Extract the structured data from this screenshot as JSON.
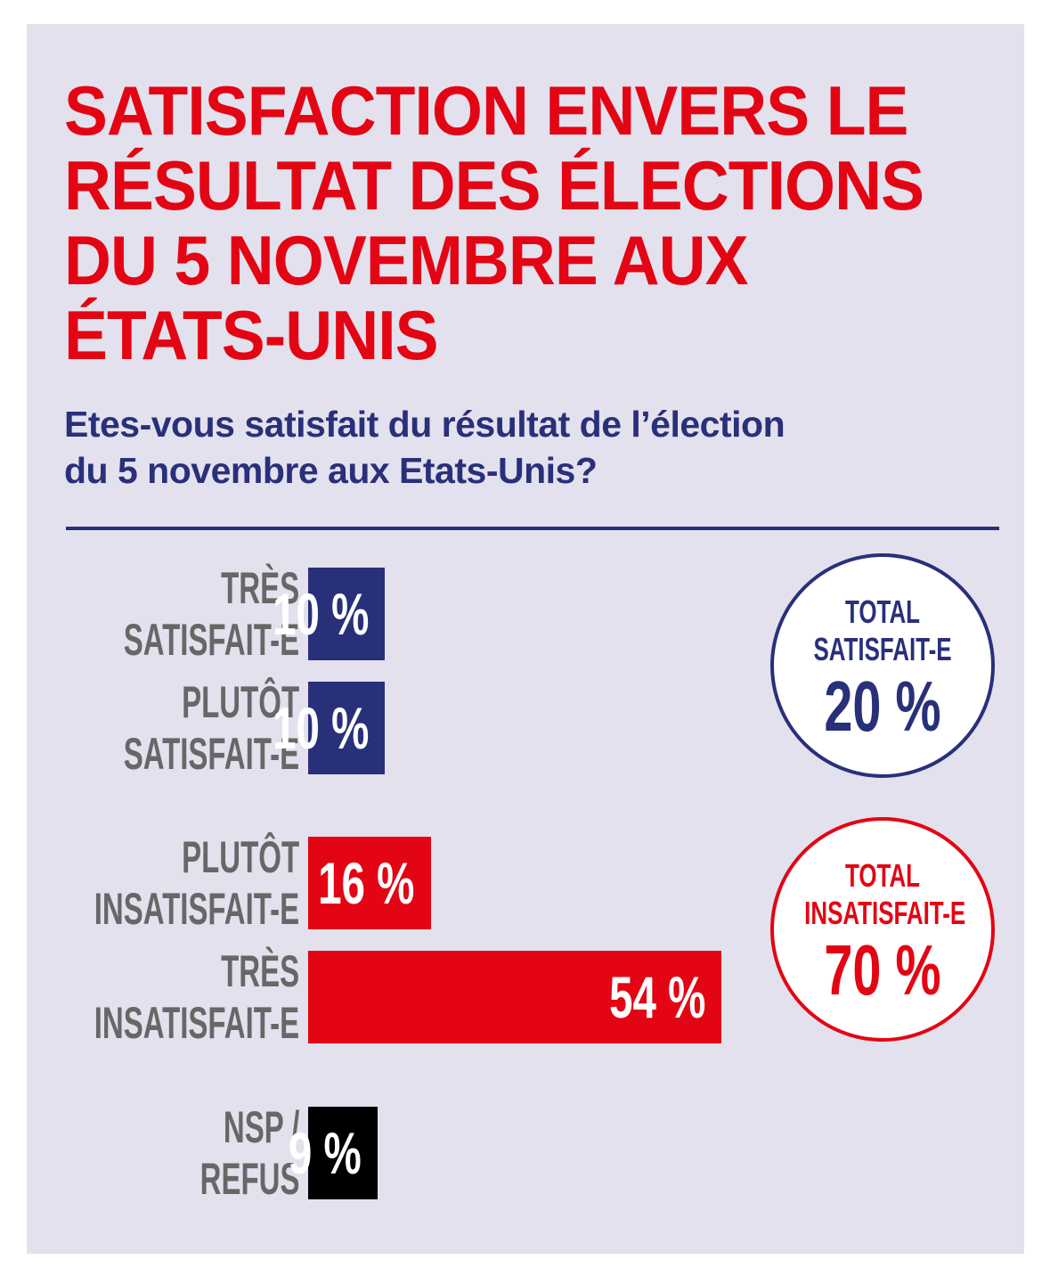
{
  "title_lines": [
    "SATISFACTION ENVERS LE",
    "RÉSULTAT DES ÉLECTIONS",
    "DU 5 NOVEMBRE AUX",
    "ÉTATS-UNIS"
  ],
  "question_lines": [
    "Etes-vous satisfait du résultat de l’élection",
    "du 5 novembre aux Etats-Unis?"
  ],
  "colors": {
    "title": "#e30513",
    "question": "#29307a",
    "satisfied": "#29307a",
    "dissatisfied": "#e30513",
    "no_answer": "#000000",
    "category_text": "#676767",
    "background": "#e4e1ee"
  },
  "chart_data": {
    "type": "bar",
    "orientation": "horizontal",
    "unit": "%",
    "bars": [
      {
        "category_lines": [
          "TRÈS",
          "SATISFAIT-E"
        ],
        "value": 10,
        "label": "10 %",
        "group": "satisfied"
      },
      {
        "category_lines": [
          "PLUTÔT",
          "SATISFAIT-E"
        ],
        "value": 10,
        "label": "10 %",
        "group": "satisfied"
      },
      {
        "category_lines": [
          "PLUTÔT",
          "INSATISFAIT-E"
        ],
        "value": 16,
        "label": "16 %",
        "group": "dissatisfied"
      },
      {
        "category_lines": [
          "TRÈS",
          "INSATISFAIT-E"
        ],
        "value": 54,
        "label": "54 %",
        "group": "dissatisfied"
      },
      {
        "category_lines": [
          "NSP /",
          "REFUS"
        ],
        "value": 9,
        "label": "9 %",
        "group": "no_answer"
      }
    ],
    "totals": [
      {
        "label_lines": [
          "TOTAL",
          "SATISFAIT-E"
        ],
        "value": 20,
        "value_label": "20 %",
        "group": "satisfied"
      },
      {
        "label_lines": [
          "TOTAL",
          "INSATISFAIT-E"
        ],
        "value": 70,
        "value_label": "70 %",
        "group": "dissatisfied"
      }
    ]
  }
}
